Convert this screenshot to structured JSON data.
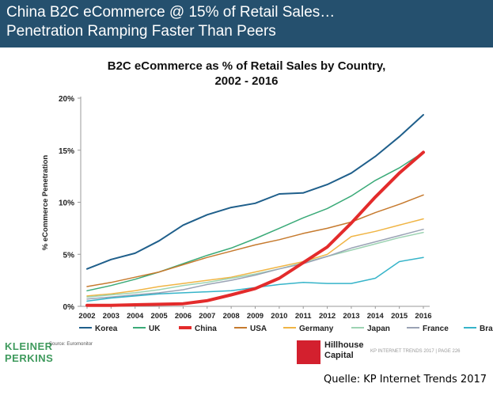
{
  "header": {
    "line1": "China B2C eCommerce @ 15% of Retail Sales…",
    "line2": "Penetration Ramping Faster Than Peers"
  },
  "footer": {
    "logo": "KLEINER\nPERKINS",
    "source": "Source: Euromonitor",
    "hillhouse_mark": "HILLHOUSE",
    "hillhouse_name": "Hillhouse\nCapital",
    "trends": "KP INTERNET TRENDS 2017  |  PAGE 226",
    "quelle": "Quelle: KP Internet Trends 2017"
  },
  "colors": {
    "header_bg": "#25506e",
    "logo_green": "#3f9a5d",
    "hillhouse_red": "#d3202e"
  },
  "chart_data": {
    "type": "line",
    "title_line1": "B2C eCommerce as % of Retail Sales by Country,",
    "title_line2": "2002 - 2016",
    "xlabel": "",
    "ylabel": "% eCommerce Penetration",
    "ylim": [
      0,
      20
    ],
    "yticks": [
      0,
      5,
      10,
      15,
      20
    ],
    "ytick_labels": [
      "0%",
      "5%",
      "10%",
      "15%",
      "20%"
    ],
    "grid": false,
    "legend_position": "bottom",
    "x": [
      "2002",
      "2003",
      "2004",
      "2005",
      "2006",
      "2007",
      "2008",
      "2009",
      "2010",
      "2011",
      "2012",
      "2013",
      "2014",
      "2015",
      "2016"
    ],
    "series": [
      {
        "name": "Korea",
        "color": "#1f5f8b",
        "width": 2,
        "values": [
          3.6,
          4.5,
          5.1,
          6.3,
          7.8,
          8.8,
          9.5,
          9.9,
          10.8,
          10.9,
          11.7,
          12.8,
          14.4,
          16.3,
          18.4
        ]
      },
      {
        "name": "UK",
        "color": "#3aaa78",
        "width": 1.5,
        "values": [
          1.5,
          2.0,
          2.6,
          3.3,
          4.1,
          4.9,
          5.6,
          6.5,
          7.5,
          8.5,
          9.4,
          10.6,
          12.1,
          13.3,
          14.8
        ]
      },
      {
        "name": "China",
        "color": "#e32b2b",
        "width": 4,
        "values": [
          0.1,
          0.1,
          0.15,
          0.2,
          0.25,
          0.55,
          1.1,
          1.7,
          2.7,
          4.2,
          5.7,
          8.0,
          10.5,
          12.8,
          14.8
        ]
      },
      {
        "name": "USA",
        "color": "#c67a2e",
        "width": 1.5,
        "values": [
          1.9,
          2.3,
          2.8,
          3.3,
          4.0,
          4.7,
          5.3,
          5.9,
          6.4,
          7.0,
          7.5,
          8.1,
          9.0,
          9.8,
          10.7
        ]
      },
      {
        "name": "Germany",
        "color": "#f0b545",
        "width": 1.5,
        "values": [
          1.0,
          1.2,
          1.5,
          1.9,
          2.2,
          2.5,
          2.8,
          3.3,
          3.8,
          4.3,
          5.0,
          6.7,
          7.2,
          7.8,
          8.4
        ]
      },
      {
        "name": "Japan",
        "color": "#9dd3b3",
        "width": 1.5,
        "values": [
          0.9,
          1.1,
          1.3,
          1.6,
          2.0,
          2.3,
          2.7,
          3.1,
          3.6,
          4.2,
          4.8,
          5.4,
          6.0,
          6.6,
          7.1
        ]
      },
      {
        "name": "France",
        "color": "#9aa3b5",
        "width": 1.5,
        "values": [
          0.7,
          0.9,
          1.1,
          1.3,
          1.6,
          2.1,
          2.5,
          3.0,
          3.6,
          4.1,
          4.8,
          5.6,
          6.2,
          6.8,
          7.4
        ]
      },
      {
        "name": "Brazil",
        "color": "#36b4c9",
        "width": 1.5,
        "values": [
          0.5,
          0.8,
          1.0,
          1.2,
          1.3,
          1.4,
          1.5,
          1.8,
          2.1,
          2.3,
          2.2,
          2.2,
          2.7,
          4.3,
          4.7
        ]
      }
    ]
  }
}
